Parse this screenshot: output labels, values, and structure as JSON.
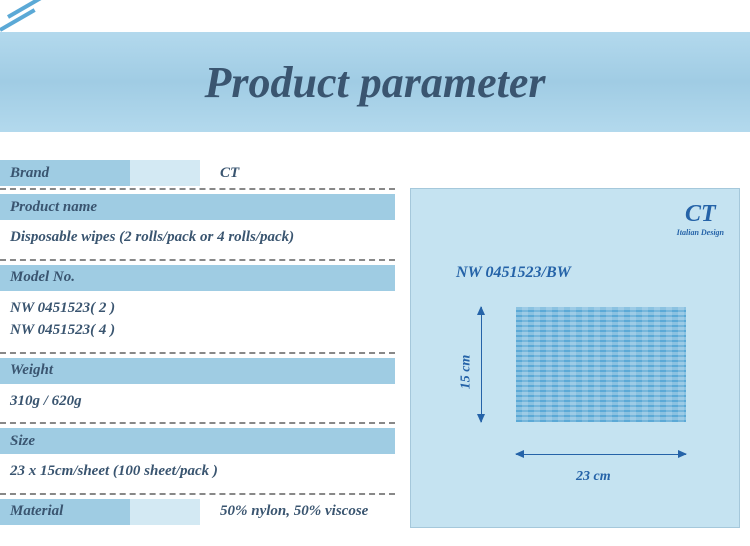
{
  "header": {
    "title": "Product parameter"
  },
  "specs": {
    "brand": {
      "label": "Brand",
      "value": "CT"
    },
    "product_name": {
      "label": "Product name",
      "value": "Disposable wipes (2 rolls/pack or 4 rolls/pack)"
    },
    "model_no": {
      "label": "Model  No.",
      "value1": "NW 0451523( 2 )",
      "value2": "NW 0451523( 4 )"
    },
    "weight": {
      "label": "Weight",
      "value": "310g / 620g"
    },
    "size": {
      "label": "Size",
      "value": "23 x 15cm/sheet (100 sheet/pack )"
    },
    "material": {
      "label": "Material",
      "value": "50% nylon, 50% viscose"
    }
  },
  "diagram": {
    "logo_text": "CT",
    "logo_sub": "Italian Design",
    "title": "NW 0451523/BW",
    "height_label": "15 cm",
    "width_label": "23 cm"
  },
  "colors": {
    "header_bg": "#b3d9ed",
    "label_bg": "#9fcce3",
    "label_light_bg": "#d3e9f3",
    "diagram_bg": "#c5e3f1",
    "text": "#3a5570",
    "accent": "#2563a8",
    "wipe": "#5ba9d6"
  }
}
